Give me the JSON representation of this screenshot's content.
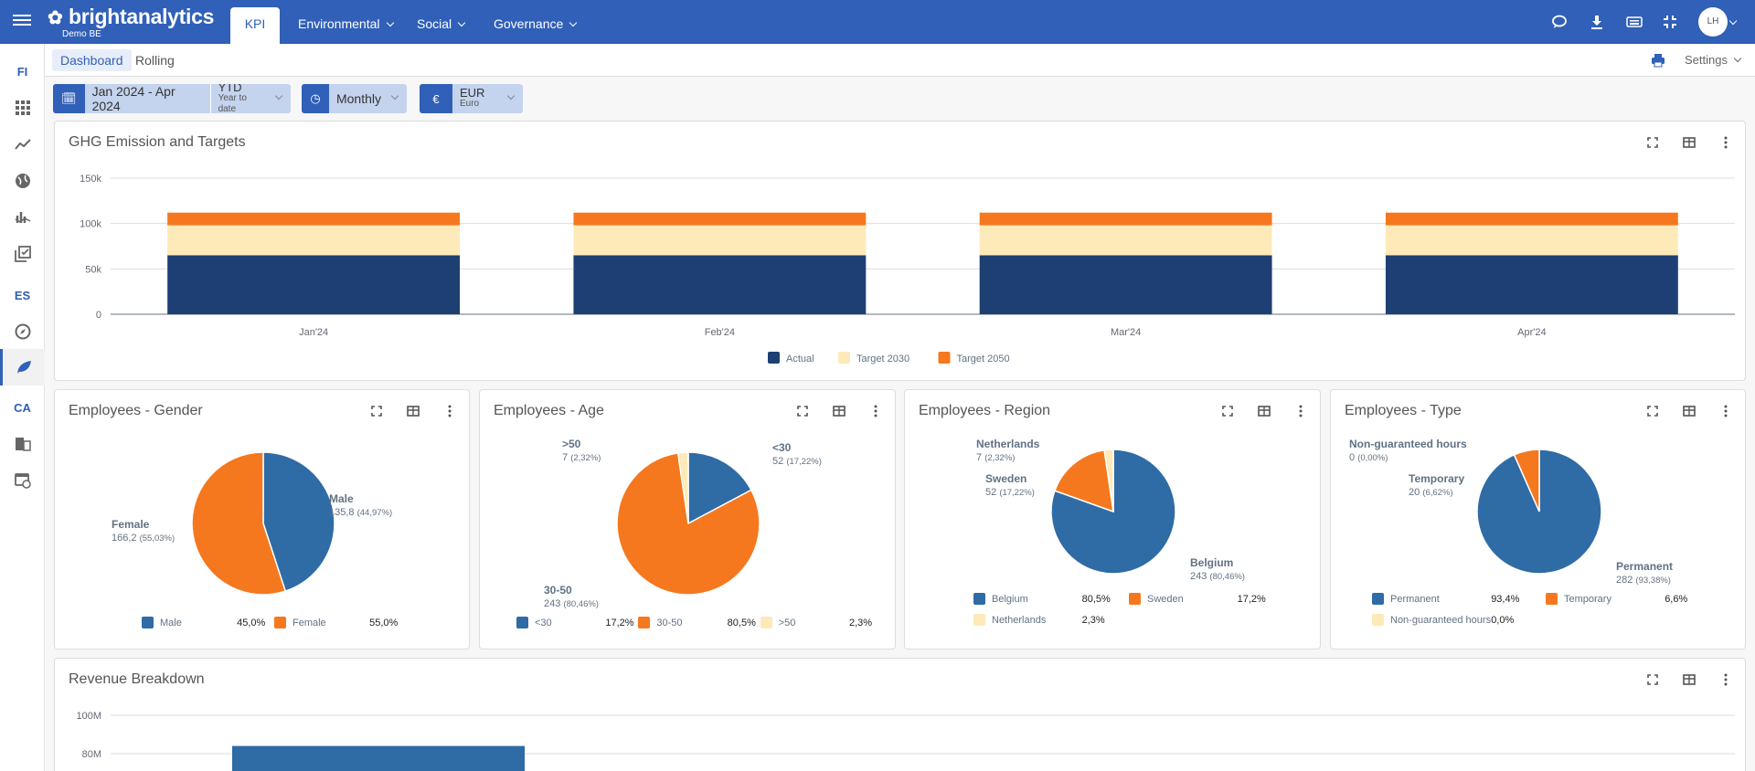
{
  "topbar": {
    "brand": "brightanalytics",
    "entity": "Demo BE",
    "tabs": [
      {
        "label": "KPI",
        "active": true
      },
      {
        "label": "Environmental"
      },
      {
        "label": "Social"
      },
      {
        "label": "Governance"
      }
    ],
    "icons": [
      "chat-icon",
      "download-icon",
      "keyboard-icon",
      "collapse-icon"
    ],
    "avatar": "LH"
  },
  "sidebar": {
    "items": [
      {
        "label": "FI"
      },
      {
        "icon": "apps-icon"
      },
      {
        "icon": "trend-icon"
      },
      {
        "icon": "globe-icon"
      },
      {
        "icon": "chart-icon"
      },
      {
        "icon": "checklist-icon"
      },
      {
        "label": "ES"
      },
      {
        "icon": "compass-icon"
      },
      {
        "icon": "leaf-icon",
        "active": true
      },
      {
        "label": "CA"
      },
      {
        "icon": "building-icon"
      },
      {
        "icon": "calendar-clock-icon"
      }
    ]
  },
  "subnav": {
    "tabs": [
      "Dashboard",
      "Rolling"
    ],
    "settings": "Settings"
  },
  "filters": {
    "period": "Jan 2024 - Apr 2024",
    "mode": "YTD",
    "mode_sub": "Year to date",
    "interval": "Monthly",
    "currency_symbol": "€",
    "currency": "EUR",
    "currency_sub": "Euro"
  },
  "colors": {
    "brand": "#3060b8",
    "navy": "#1e3f73",
    "blue": "#2f6ba5",
    "orange": "#f5781e",
    "cream": "#fdeab8"
  },
  "ghg": {
    "title": "GHG Emission and Targets"
  },
  "gender": {
    "title": "Employees - Gender"
  },
  "age": {
    "title": "Employees - Age"
  },
  "region": {
    "title": "Employees - Region"
  },
  "type": {
    "title": "Employees - Type"
  },
  "revenue": {
    "title": "Revenue Breakdown"
  },
  "chart_data": [
    {
      "type": "bar",
      "stacked": true,
      "title": "GHG Emission and Targets",
      "categories": [
        "Jan'24",
        "Feb'24",
        "Mar'24",
        "Apr'24"
      ],
      "series": [
        {
          "name": "Actual",
          "values": [
            65000,
            65000,
            65000,
            65000
          ]
        },
        {
          "name": "Target 2030",
          "values": [
            33000,
            33000,
            33000,
            33000
          ]
        },
        {
          "name": "Target 2050",
          "values": [
            14000,
            14000,
            14000,
            14000
          ]
        }
      ],
      "yticks": [
        "0",
        "50k",
        "100k",
        "150k"
      ],
      "ylim": [
        0,
        150000
      ],
      "grid": true,
      "legend": "bottom"
    },
    {
      "type": "pie",
      "title": "Employees - Gender",
      "slices": [
        {
          "name": "Male",
          "value": "135,8",
          "pct": "44,97%",
          "legend_pct": "45,0%",
          "share": 44.97
        },
        {
          "name": "Female",
          "value": "166,2",
          "pct": "55,03%",
          "legend_pct": "55,0%",
          "share": 55.03
        }
      ],
      "legend": "bottom"
    },
    {
      "type": "pie",
      "title": "Employees - Age",
      "slices": [
        {
          "name": "<30",
          "value": "52",
          "pct": "17,22%",
          "legend_pct": "17,2%",
          "share": 17.22
        },
        {
          "name": "30-50",
          "value": "243",
          "pct": "80,46%",
          "legend_pct": "80,5%",
          "share": 80.46
        },
        {
          "name": ">50",
          "value": "7",
          "pct": "2,32%",
          "legend_pct": "2,3%",
          "share": 2.32
        }
      ],
      "legend": "bottom"
    },
    {
      "type": "pie",
      "title": "Employees - Region",
      "slices": [
        {
          "name": "Belgium",
          "value": "243",
          "pct": "80,46%",
          "legend_pct": "80,5%",
          "share": 80.46
        },
        {
          "name": "Sweden",
          "value": "52",
          "pct": "17,22%",
          "legend_pct": "17,2%",
          "share": 17.22
        },
        {
          "name": "Netherlands",
          "value": "7",
          "pct": "2,32%",
          "legend_pct": "2,3%",
          "share": 2.32
        }
      ],
      "legend": "bottom"
    },
    {
      "type": "pie",
      "title": "Employees - Type",
      "slices": [
        {
          "name": "Permanent",
          "value": "282",
          "pct": "93,38%",
          "legend_pct": "93,4%",
          "share": 93.38
        },
        {
          "name": "Temporary",
          "value": "20",
          "pct": "6,62%",
          "legend_pct": "6,6%",
          "share": 6.62
        },
        {
          "name": "Non-guaranteed hours",
          "value": "0",
          "pct": "0,00%",
          "legend_pct": "0,0%",
          "share": 0
        }
      ],
      "legend": "bottom"
    },
    {
      "type": "bar",
      "title": "Revenue Breakdown",
      "values": [
        84000000
      ],
      "yticks": [
        "80M",
        "100M"
      ],
      "ylim": [
        0,
        100000000
      ],
      "grid": true
    }
  ]
}
